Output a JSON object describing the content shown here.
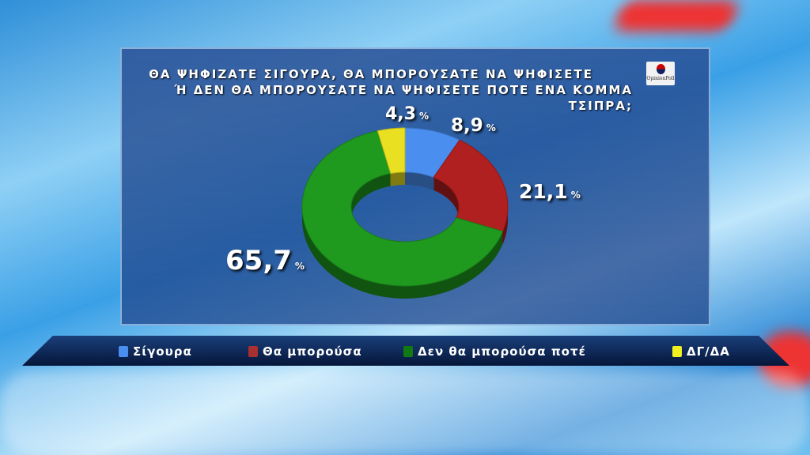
{
  "title_line1": "ΘΑ ΨΗΦΙΖΑΤΕ ΣΙΓΟΥΡΑ, ΘΑ ΜΠΟΡΟΥΣΑΤΕ ΝΑ ΨΗΦΙΣΕΤΕ",
  "title_line2": "Ή ΔΕΝ ΘΑ ΜΠΟΡΟΥΣΑΤΕ ΝΑ ΨΗΦΙΣΕΤΕ ΠΟΤΕ ΕΝΑ ΚΟΜΜΑ ΤΣΙΠΡΑ;",
  "logo_text": "OpinionPoll",
  "percent_sign": "%",
  "chart_data": {
    "type": "pie",
    "style": "donut-3d",
    "title": "ΘΑ ΨΗΦΙΖΑΤΕ ΣΙΓΟΥΡΑ, ΘΑ ΜΠΟΡΟΥΣΑΤΕ ΝΑ ΨΗΦΙΣΕΤΕ Ή ΔΕΝ ΘΑ ΜΠΟΡΟΥΣΑΤΕ ΝΑ ΨΗΦΙΣΕΤΕ ΠΟΤΕ ΕΝΑ ΚΟΜΜΑ ΤΣΙΠΡΑ;",
    "legend_position": "bottom",
    "slices": [
      {
        "name": "Σίγουρα",
        "value": 8.9,
        "label": "8,9",
        "color": "#4a8ef0"
      },
      {
        "name": "Θα μπορούσα",
        "value": 21.1,
        "label": "21,1",
        "color": "#b02020"
      },
      {
        "name": "Δεν θα μπορούσα ποτέ",
        "value": 65.7,
        "label": "65,7",
        "color": "#1f9a1f"
      },
      {
        "name": "ΔΓ/ΔΑ",
        "value": 4.3,
        "label": "4,3",
        "color": "#e8e020"
      }
    ]
  }
}
